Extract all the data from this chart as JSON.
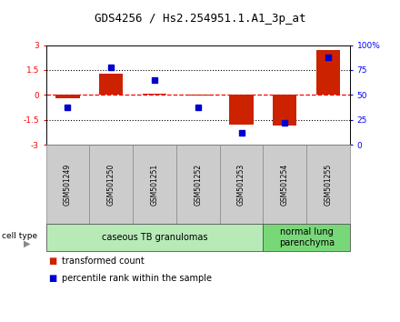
{
  "title": "GDS4256 / Hs2.254951.1.A1_3p_at",
  "samples": [
    "GSM501249",
    "GSM501250",
    "GSM501251",
    "GSM501252",
    "GSM501253",
    "GSM501254",
    "GSM501255"
  ],
  "red_bars": [
    -0.2,
    1.3,
    0.1,
    -0.05,
    -1.8,
    -1.85,
    2.7
  ],
  "blue_squares_pct": [
    38,
    78,
    65,
    38,
    12,
    22,
    88
  ],
  "ylim_left": [
    -3,
    3
  ],
  "ylim_right": [
    0,
    100
  ],
  "left_yticks": [
    -3,
    -1.5,
    0,
    1.5,
    3
  ],
  "right_yticks": [
    0,
    25,
    50,
    75,
    100
  ],
  "right_yticklabels": [
    "0",
    "25",
    "50",
    "75",
    "100%"
  ],
  "groups": [
    {
      "label": "caseous TB granulomas",
      "start": 0,
      "end": 5,
      "color": "#b8eab8"
    },
    {
      "label": "normal lung\nparenchyma",
      "start": 5,
      "end": 7,
      "color": "#78d878"
    }
  ],
  "legend": [
    {
      "color": "#cc2200",
      "label": "transformed count"
    },
    {
      "color": "#0000cc",
      "label": "percentile rank within the sample"
    }
  ],
  "bar_color": "#cc2200",
  "square_color": "#0000cc",
  "bar_width": 0.55,
  "title_fontsize": 9,
  "tick_fontsize": 6.5,
  "sample_fontsize": 5.5,
  "group_fontsize": 7,
  "legend_fontsize": 7
}
